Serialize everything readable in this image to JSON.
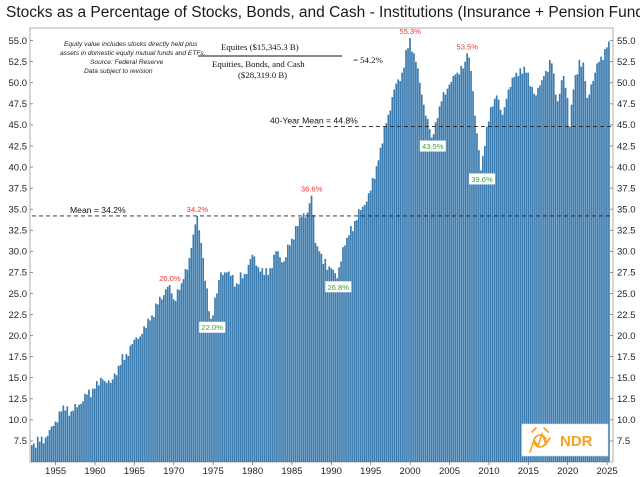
{
  "chart_data": {
    "type": "bar",
    "title": "Stocks as a Percentage of Stocks, Bonds, and Cash - Institutions (Insurance + Pension Funds)",
    "frequency": "quarterly",
    "x_start_year": 1952,
    "x_range": [
      1951.75,
      2025.75
    ],
    "ylim": [
      5.0,
      56.5
    ],
    "y_ticks": [
      "7.5",
      "10.0",
      "12.5",
      "15.0",
      "17.5",
      "20.0",
      "22.5",
      "25.0",
      "27.5",
      "30.0",
      "32.5",
      "35.0",
      "37.5",
      "40.0",
      "42.5",
      "45.0",
      "47.5",
      "50.0",
      "52.5",
      "55.0"
    ],
    "x_ticks": [
      "1955",
      "1960",
      "1965",
      "1970",
      "1975",
      "1980",
      "1985",
      "1990",
      "1995",
      "2000",
      "2005",
      "2010",
      "2015",
      "2020",
      "2025"
    ],
    "anchors": [
      [
        1952.0,
        7.0
      ],
      [
        1953.0,
        7.4
      ],
      [
        1954.0,
        8.1
      ],
      [
        1955.0,
        9.8
      ],
      [
        1956.0,
        11.7
      ],
      [
        1957.0,
        11.0
      ],
      [
        1958.0,
        11.8
      ],
      [
        1959.0,
        13.0
      ],
      [
        1960.0,
        13.7
      ],
      [
        1961.0,
        14.8
      ],
      [
        1962.0,
        14.4
      ],
      [
        1963.0,
        16.4
      ],
      [
        1964.0,
        17.8
      ],
      [
        1965.0,
        19.5
      ],
      [
        1966.0,
        20.2
      ],
      [
        1967.0,
        21.8
      ],
      [
        1968.0,
        23.7
      ],
      [
        1969.0,
        25.5
      ],
      [
        1969.5,
        26.0
      ],
      [
        1970.0,
        24.3
      ],
      [
        1971.0,
        26.2
      ],
      [
        1972.0,
        29.2
      ],
      [
        1973.0,
        34.2
      ],
      [
        1973.5,
        31.0
      ],
      [
        1974.0,
        26.5
      ],
      [
        1974.75,
        22.0
      ],
      [
        1975.5,
        25.0
      ],
      [
        1976.0,
        27.5
      ],
      [
        1977.0,
        27.6
      ],
      [
        1978.0,
        26.2
      ],
      [
        1979.0,
        27.3
      ],
      [
        1980.0,
        29.6
      ],
      [
        1981.0,
        27.6
      ],
      [
        1982.0,
        27.2
      ],
      [
        1983.0,
        30.0
      ],
      [
        1984.0,
        28.8
      ],
      [
        1985.0,
        31.5
      ],
      [
        1986.0,
        34.0
      ],
      [
        1987.0,
        34.6
      ],
      [
        1987.5,
        36.6
      ],
      [
        1988.0,
        31.0
      ],
      [
        1988.5,
        30.0
      ],
      [
        1989.0,
        28.5
      ],
      [
        1990.0,
        28.0
      ],
      [
        1990.75,
        26.8
      ],
      [
        1991.5,
        30.5
      ],
      [
        1992.0,
        31.6
      ],
      [
        1993.0,
        33.6
      ],
      [
        1994.0,
        35.3
      ],
      [
        1995.0,
        37.2
      ],
      [
        1996.0,
        40.8
      ],
      [
        1997.0,
        45.2
      ],
      [
        1998.0,
        49.2
      ],
      [
        1999.0,
        51.2
      ],
      [
        2000.0,
        55.3
      ],
      [
        2000.75,
        52.5
      ],
      [
        2001.5,
        48.6
      ],
      [
        2002.5,
        44.5
      ],
      [
        2002.75,
        43.5
      ],
      [
        2003.5,
        45.8
      ],
      [
        2004.0,
        47.8
      ],
      [
        2005.0,
        49.8
      ],
      [
        2006.0,
        51.2
      ],
      [
        2007.0,
        52.5
      ],
      [
        2007.25,
        53.5
      ],
      [
        2007.75,
        51.4
      ],
      [
        2008.5,
        44.0
      ],
      [
        2009.0,
        39.6
      ],
      [
        2009.75,
        44.8
      ],
      [
        2010.5,
        47.2
      ],
      [
        2011.0,
        48.5
      ],
      [
        2011.75,
        46.2
      ],
      [
        2012.5,
        49.2
      ],
      [
        2013.5,
        51.2
      ],
      [
        2014.5,
        51.9
      ],
      [
        2015.5,
        49.5
      ],
      [
        2016.0,
        48.5
      ],
      [
        2017.0,
        50.8
      ],
      [
        2018.0,
        52.3
      ],
      [
        2018.75,
        47.8
      ],
      [
        2019.5,
        50.8
      ],
      [
        2020.0,
        48.2
      ],
      [
        2020.25,
        44.8
      ],
      [
        2020.75,
        49.2
      ],
      [
        2021.5,
        52.7
      ],
      [
        2022.0,
        52.4
      ],
      [
        2022.5,
        48.2
      ],
      [
        2023.0,
        49.8
      ],
      [
        2024.0,
        52.5
      ],
      [
        2025.0,
        54.2
      ]
    ],
    "reference_lines": [
      {
        "label": "Mean = 34.2%",
        "value": 34.2,
        "from_year": 1952
      },
      {
        "label": "40-Year Mean = 44.8%",
        "value": 44.8,
        "from_year": 1985
      }
    ],
    "peaks": [
      {
        "year": 1969.5,
        "value": 26.0,
        "label": "26.0%"
      },
      {
        "year": 1973.0,
        "value": 34.2,
        "label": "34.2%"
      },
      {
        "year": 1987.5,
        "value": 36.6,
        "label": "36.6%"
      },
      {
        "year": 2000.0,
        "value": 55.3,
        "label": "55.3%"
      },
      {
        "year": 2007.25,
        "value": 53.5,
        "label": "53.5%"
      }
    ],
    "troughs": [
      {
        "year": 1974.75,
        "value": 22.0,
        "label": "22.0%"
      },
      {
        "year": 1990.75,
        "value": 26.8,
        "label": "26.8%"
      },
      {
        "year": 2002.75,
        "value": 43.5,
        "label": "43.5%"
      },
      {
        "year": 2009.0,
        "value": 39.6,
        "label": "39.6%"
      }
    ],
    "notes": [
      "Equity value includes stocks directly held plus",
      "assets in domestic equity mutual funds and ETFs.",
      "Source: Federal Reserve",
      "Data subject to revision"
    ],
    "formula": {
      "numerator": "Equites ($15,345.3 B)",
      "denominator": "Equities, Bonds, and Cash",
      "denominator2": "($28,319.0 B)",
      "result": "= 54.2%"
    },
    "logo": "NDR",
    "colors": {
      "bar": "#3b7cb0",
      "bar_edge": "#ffffff",
      "peak": "#e53935",
      "trough": "#3aa53a",
      "logo": "#f7a21b"
    }
  }
}
